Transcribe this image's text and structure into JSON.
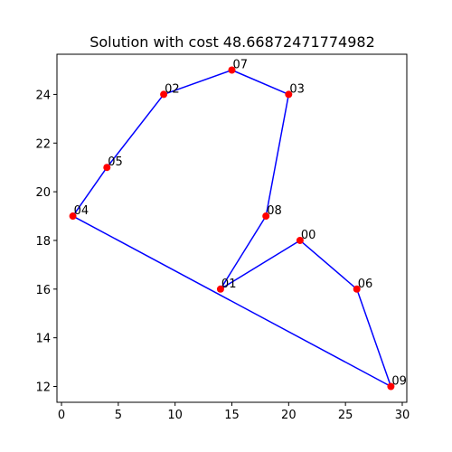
{
  "chart_data": {
    "type": "scatter",
    "title": "Solution with cost 48.66872471774982",
    "xlabel": "",
    "ylabel": "",
    "xlim": [
      -0.4,
      30.4
    ],
    "ylim": [
      11.35,
      25.65
    ],
    "x_ticks": [
      0,
      5,
      10,
      15,
      20,
      25,
      30
    ],
    "y_ticks": [
      12,
      14,
      16,
      18,
      20,
      22,
      24
    ],
    "grid": false,
    "legend": "none",
    "colors": {
      "points": "#ff0000",
      "route": "#0000ff"
    },
    "points": [
      {
        "label": "00",
        "x": 21,
        "y": 18
      },
      {
        "label": "01",
        "x": 14,
        "y": 16
      },
      {
        "label": "02",
        "x": 9,
        "y": 24
      },
      {
        "label": "03",
        "x": 20,
        "y": 24
      },
      {
        "label": "04",
        "x": 1,
        "y": 19
      },
      {
        "label": "05",
        "x": 4,
        "y": 21
      },
      {
        "label": "06",
        "x": 26,
        "y": 16
      },
      {
        "label": "07",
        "x": 15,
        "y": 25
      },
      {
        "label": "08",
        "x": 18,
        "y": 19
      },
      {
        "label": "09",
        "x": 29,
        "y": 12
      }
    ],
    "route": [
      "04",
      "05",
      "02",
      "07",
      "03",
      "08",
      "01",
      "00",
      "06",
      "09",
      "04"
    ]
  }
}
